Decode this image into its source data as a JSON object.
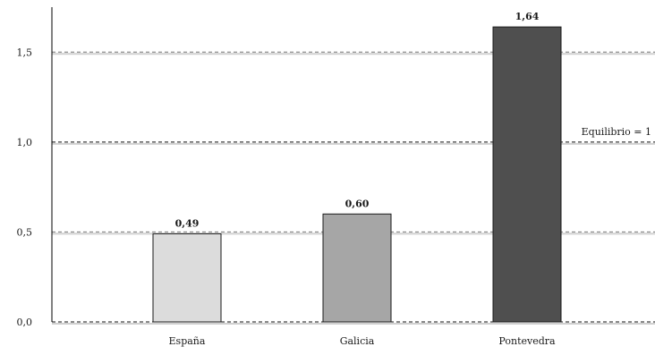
{
  "chart_data": {
    "type": "bar",
    "categories": [
      "España",
      "Galicia",
      "Pontevedra"
    ],
    "values": [
      0.49,
      0.6,
      1.64
    ],
    "value_labels": [
      "0,49",
      "0,60",
      "1,64"
    ],
    "bar_colors": [
      "#dcdcdc",
      "#a6a6a6",
      "#4f4f4f"
    ],
    "ylim": [
      0,
      1.75
    ],
    "yticks": [
      0,
      0.5,
      1.0,
      1.5
    ],
    "ytick_labels": [
      "0,0",
      "0,5",
      "1,0",
      "1,5"
    ],
    "grid": "dashed horizontal at each tick",
    "reference_line": {
      "value": 1.0,
      "label": "Equilibrio = 1"
    },
    "title": "",
    "xlabel": "",
    "ylabel": ""
  }
}
